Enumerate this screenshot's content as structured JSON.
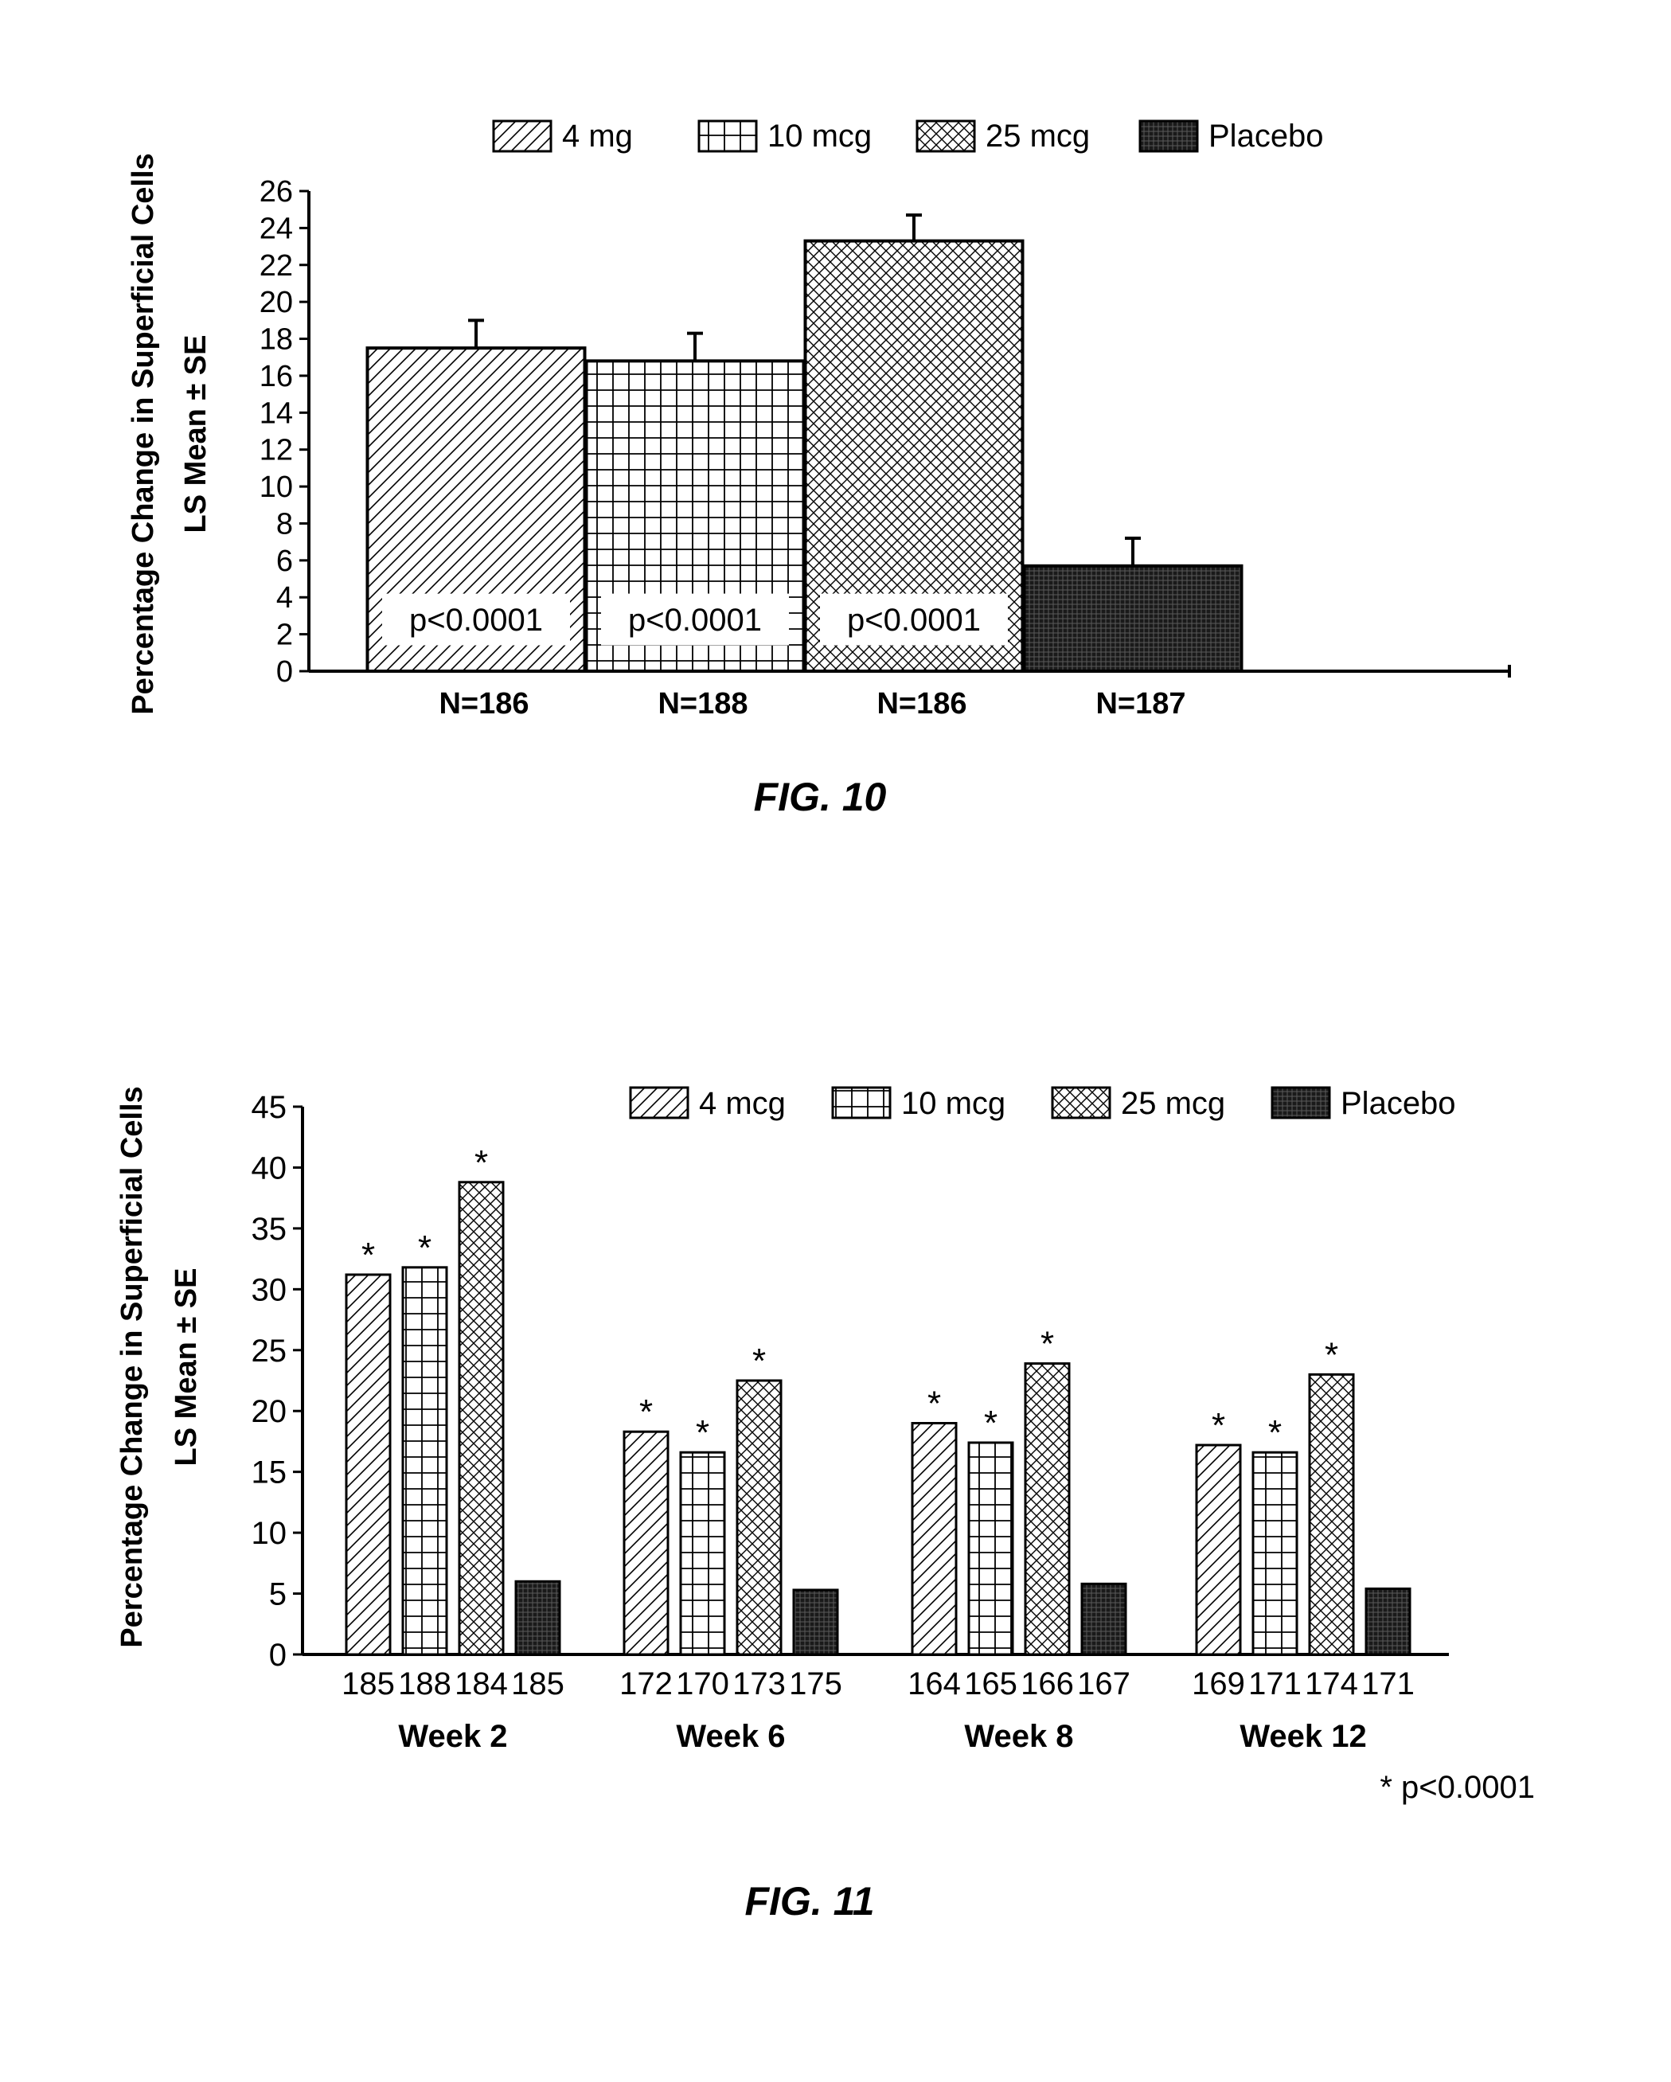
{
  "chart_data": [
    {
      "figure_label": "FIG. 10",
      "type": "bar",
      "ylabel": [
        "Percentage Change in Superficial Cells",
        "LS Mean ± SE"
      ],
      "ylim": [
        0,
        26
      ],
      "yticks": [
        0,
        2,
        4,
        6,
        8,
        10,
        12,
        14,
        16,
        18,
        20,
        22,
        24,
        26
      ],
      "grid": false,
      "legend_position": "top",
      "legend": [
        "4 mg",
        "10 mcg",
        "25 mcg",
        "Placebo"
      ],
      "categories": [
        "N=186",
        "N=188",
        "N=186",
        "N=187"
      ],
      "values": [
        17.5,
        16.8,
        23.3,
        5.7
      ],
      "errors": [
        1.5,
        1.5,
        1.4,
        1.5
      ],
      "bar_labels": [
        "p<0.0001",
        "p<0.0001",
        "p<0.0001",
        ""
      ],
      "patterns": [
        "diagonal",
        "grid",
        "crosshatch",
        "dense"
      ]
    },
    {
      "figure_label": "FIG. 11",
      "type": "bar",
      "ylabel": [
        "Percentage Change in Superficial Cells",
        "LS Mean ± SE"
      ],
      "ylim": [
        0,
        45
      ],
      "yticks": [
        0,
        5,
        10,
        15,
        20,
        25,
        30,
        35,
        40,
        45
      ],
      "grid": false,
      "legend_position": "top",
      "categories": [
        "Week 2",
        "Week 6",
        "Week 8",
        "Week 12"
      ],
      "series": [
        {
          "name": "4 mcg",
          "pattern": "diagonal",
          "values": [
            31.2,
            18.3,
            19.0,
            17.2
          ],
          "n": [
            "185",
            "172",
            "164",
            "169"
          ],
          "marked": [
            true,
            true,
            true,
            true
          ]
        },
        {
          "name": "10 mcg",
          "pattern": "grid",
          "values": [
            31.8,
            16.6,
            17.4,
            16.6
          ],
          "n": [
            "188",
            "170",
            "165",
            "171"
          ],
          "marked": [
            true,
            true,
            true,
            true
          ]
        },
        {
          "name": "25 mcg",
          "pattern": "crosshatch",
          "values": [
            38.8,
            22.5,
            23.9,
            23.0
          ],
          "n": [
            "184",
            "173",
            "166",
            "174"
          ],
          "marked": [
            true,
            true,
            true,
            true
          ]
        },
        {
          "name": "Placebo",
          "pattern": "dense",
          "values": [
            6.0,
            5.3,
            5.8,
            5.4
          ],
          "n": [
            "185",
            "175",
            "167",
            "171"
          ],
          "marked": [
            false,
            false,
            false,
            false
          ]
        }
      ],
      "significance_marker": "*",
      "footnote": "* p<0.0001"
    }
  ]
}
